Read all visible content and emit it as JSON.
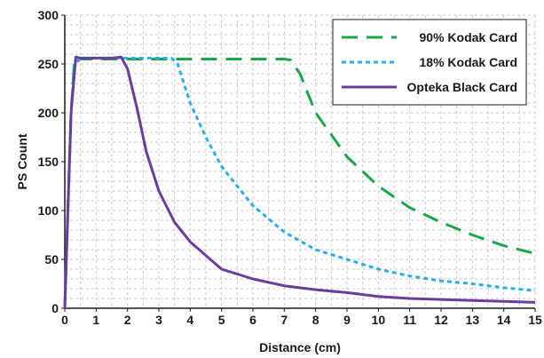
{
  "chart_data": {
    "type": "line",
    "xlabel": "Distance (cm)",
    "ylabel": "PS Count",
    "xlim": [
      0,
      15
    ],
    "ylim": [
      0,
      300
    ],
    "x_ticks": [
      0,
      1,
      2,
      3,
      4,
      5,
      6,
      7,
      8,
      9,
      10,
      11,
      12,
      13,
      14,
      15
    ],
    "y_ticks": [
      0,
      50,
      100,
      150,
      200,
      250,
      300
    ],
    "grid": "dashed-both",
    "legend_position": "top-right",
    "series": [
      {
        "name": "90% Kodak Card",
        "color": "#1aa64a",
        "style": "long-dash",
        "x": [
          0,
          0.1,
          0.2,
          0.3,
          0.5,
          1,
          2,
          3,
          4,
          5,
          6,
          7,
          7.2,
          7.5,
          8,
          9,
          10,
          11,
          12,
          13,
          14,
          15
        ],
        "y": [
          0,
          100,
          200,
          250,
          255,
          255,
          255,
          255,
          255,
          255,
          255,
          255,
          254,
          240,
          200,
          155,
          125,
          103,
          88,
          75,
          64,
          56
        ]
      },
      {
        "name": "18% Kodak Card",
        "color": "#2aaee6",
        "style": "short-dash",
        "x": [
          0,
          0.1,
          0.2,
          0.3,
          0.5,
          1,
          2,
          3,
          3.4,
          3.6,
          4,
          4.5,
          5,
          6,
          7,
          8,
          9,
          10,
          11,
          12,
          13,
          14,
          15
        ],
        "y": [
          0,
          100,
          200,
          250,
          256,
          256,
          256,
          256,
          256,
          250,
          210,
          175,
          145,
          105,
          78,
          60,
          50,
          40,
          33,
          28,
          25,
          21,
          18
        ]
      },
      {
        "name": "Opteka Black Card",
        "color": "#6a3d9a",
        "style": "solid",
        "x": [
          0,
          0.1,
          0.2,
          0.35,
          0.5,
          1,
          1.5,
          1.8,
          2,
          2.3,
          2.6,
          3,
          3.5,
          4,
          4.5,
          5,
          6,
          7,
          8,
          9,
          10,
          11,
          12,
          13,
          14,
          15
        ],
        "y": [
          0,
          100,
          200,
          257,
          256,
          256,
          256,
          257,
          245,
          205,
          160,
          120,
          88,
          68,
          54,
          40,
          30,
          23,
          19,
          16,
          12,
          10,
          9,
          8,
          7,
          6
        ]
      }
    ]
  }
}
